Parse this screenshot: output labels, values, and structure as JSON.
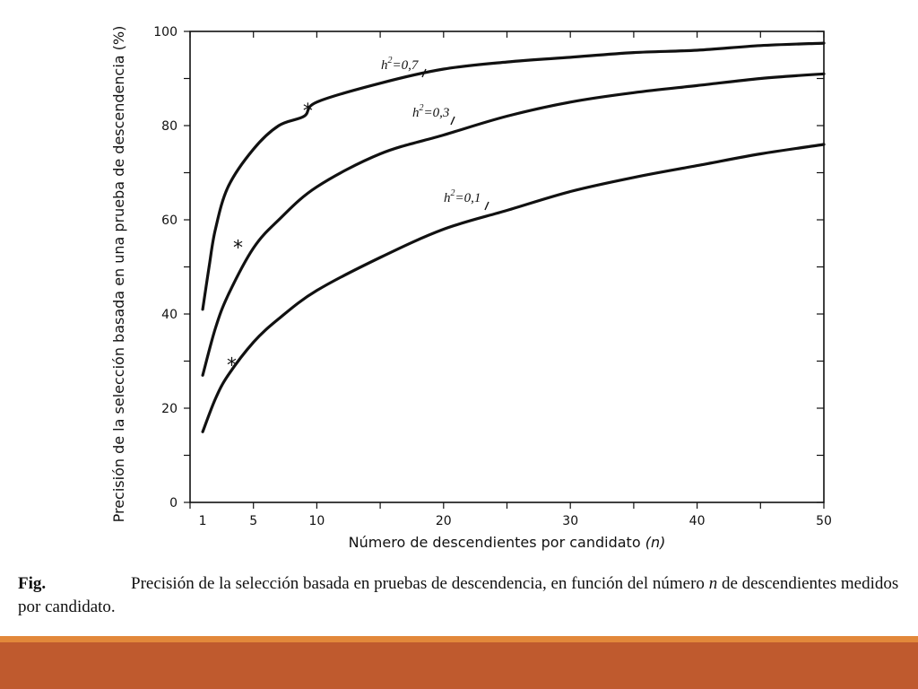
{
  "chart_data": {
    "type": "line",
    "title": "",
    "xlabel": "Número de descendientes por candidato",
    "xlabel_var": "(n)",
    "ylabel": "Precisión de la selección basada en una prueba de descendencia (%)",
    "xlim": [
      0,
      50
    ],
    "ylim": [
      0,
      100
    ],
    "x_ticks": [
      1,
      5,
      10,
      20,
      30,
      40,
      50
    ],
    "y_ticks": [
      0,
      20,
      40,
      60,
      80,
      100
    ],
    "grid": false,
    "series": [
      {
        "name": "h²=0,7",
        "base": "h",
        "sup": "2",
        "value": "=0,7",
        "h2": 0.7,
        "x": [
          1,
          1.5,
          2,
          3,
          5,
          7,
          9,
          10,
          15,
          20,
          25,
          30,
          35,
          40,
          45,
          50
        ],
        "values": [
          41,
          50,
          58,
          67,
          75,
          80,
          82,
          85,
          89,
          92,
          93.5,
          94.5,
          95.5,
          96,
          97,
          97.5
        ],
        "marker_at": 9.5,
        "marker_value": 84
      },
      {
        "name": "h²=0,3",
        "base": "h",
        "sup": "2",
        "value": "=0,3",
        "h2": 0.3,
        "x": [
          1,
          2,
          3,
          5,
          7,
          10,
          15,
          20,
          25,
          30,
          35,
          40,
          45,
          50
        ],
        "values": [
          27,
          37,
          44,
          54,
          60,
          67,
          74,
          78,
          82,
          85,
          87,
          88.5,
          90,
          91
        ],
        "marker_at": 4,
        "marker_value": 55
      },
      {
        "name": "h²=0,1",
        "base": "h",
        "sup": "2",
        "value": "=0,1",
        "h2": 0.1,
        "x": [
          1,
          2,
          3,
          5,
          7,
          10,
          15,
          20,
          25,
          30,
          35,
          40,
          45,
          50
        ],
        "values": [
          15,
          22,
          27,
          34,
          39,
          45,
          52,
          58,
          62,
          66,
          69,
          71.5,
          74,
          76
        ],
        "marker_at": 3.5,
        "marker_value": 30
      }
    ],
    "marker_symbol": "*"
  },
  "caption": {
    "label": "Fig.",
    "text": "Precisión de la selección basada en pruebas de descendencia, en función del número",
    "var": "n",
    "text2": "de descendientes medidos por candidato."
  }
}
